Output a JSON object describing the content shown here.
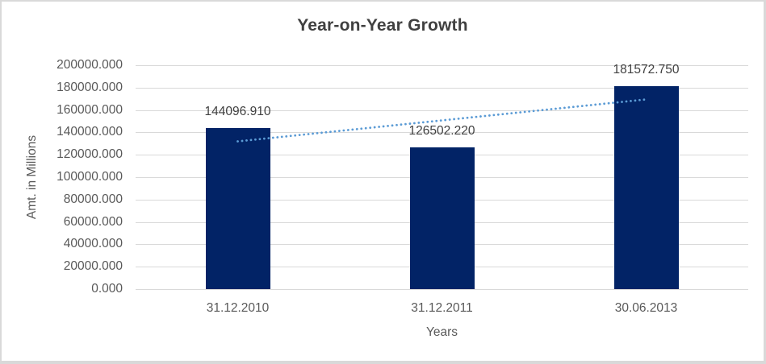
{
  "chart_data": {
    "type": "bar",
    "title": "Year-on-Year Growth",
    "xlabel": "Years",
    "ylabel": "Amt. in Millions",
    "categories": [
      "31.12.2010",
      "31.12.2011",
      "30.06.2013"
    ],
    "values": [
      144096.91,
      126502.22,
      181572.75
    ],
    "data_labels": [
      "144096.910",
      "126502.220",
      "181572.750"
    ],
    "ylim": [
      0,
      200000
    ],
    "ytick_step": 20000,
    "ytick_labels": [
      "0.000",
      "20000.000",
      "40000.000",
      "60000.000",
      "80000.000",
      "100000.000",
      "120000.000",
      "140000.000",
      "160000.000",
      "180000.000",
      "200000.000"
    ],
    "grid": "horizontal",
    "legend": "none",
    "colors": {
      "bar": "#022366",
      "trendline": "#5B9BD5",
      "gridline": "#D9D9D9",
      "tick_text": "#595959",
      "axis_title_text": "#595959",
      "data_label_text": "#404040",
      "title_text": "#404040"
    },
    "trendline": {
      "type": "linear",
      "style": "dotted",
      "color": "#5B9BD5",
      "endpoint_values": [
        131986.04,
        169461.88
      ]
    }
  }
}
